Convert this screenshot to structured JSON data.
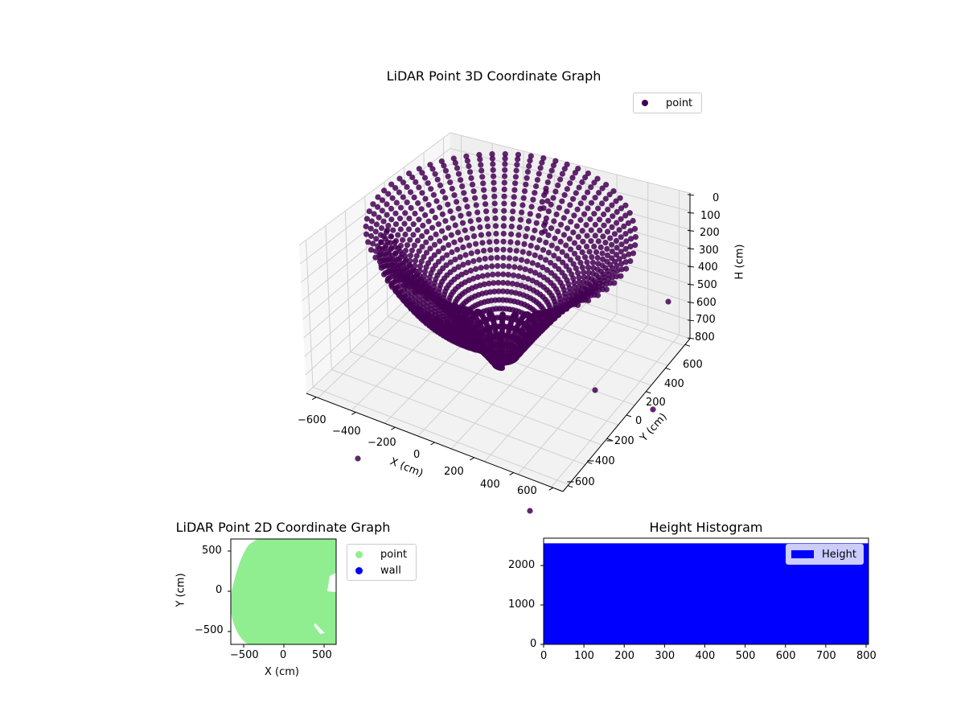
{
  "chart_data": [
    {
      "type": "scatter",
      "subtype": "3d",
      "title": "LiDAR Point 3D Coordinate Graph",
      "xlabel": "X (cm)",
      "ylabel": "Y (cm)",
      "zlabel": "H (cm)",
      "xticks": [
        "−600",
        "−400",
        "−200",
        "0",
        "200",
        "400",
        "600"
      ],
      "yticks": [
        "−600",
        "−400",
        "−200",
        "0",
        "200",
        "400",
        "600"
      ],
      "zticks": [
        "0",
        "100",
        "200",
        "300",
        "400",
        "500",
        "600",
        "700",
        "800"
      ],
      "xlim": [
        -650,
        650
      ],
      "ylim": [
        -650,
        650
      ],
      "zlim": [
        800,
        0
      ],
      "legend": [
        {
          "label": "point",
          "color": "#440154"
        }
      ],
      "point_color": "#440154",
      "description": "Bowl-shaped point cloud: radial rings of points centered near (0,0), H increasing toward center bottom, radius up to ~600cm",
      "grid": true
    },
    {
      "type": "scatter",
      "title": "LiDAR Point 2D Coordinate Graph",
      "xlabel": "X (cm)",
      "ylabel": "Y (cm)",
      "xticks": [
        "−500",
        "0",
        "500"
      ],
      "yticks": [
        "500",
        "0",
        "−500"
      ],
      "xlim": [
        -670,
        670
      ],
      "ylim": [
        -670,
        670
      ],
      "legend": [
        {
          "label": "point",
          "color": "#90ee90"
        },
        {
          "label": "wall",
          "color": "#0000ff"
        }
      ],
      "legend_position": "outside right upper"
    },
    {
      "type": "bar",
      "subtype": "histogram",
      "title": "Height Histogram",
      "xticks": [
        "0",
        "100",
        "200",
        "300",
        "400",
        "500",
        "600",
        "700",
        "800"
      ],
      "yticks": [
        "0",
        "1000",
        "2000"
      ],
      "xlim": [
        0,
        806
      ],
      "ylim": [
        0,
        2690
      ],
      "series": [
        {
          "name": "Height",
          "color": "#0000ff",
          "bins_range": [
            0,
            806
          ],
          "count_approx": 2560
        }
      ],
      "legend": [
        {
          "label": "Height",
          "color": "#0000ff"
        }
      ],
      "legend_position": "upper right"
    }
  ]
}
